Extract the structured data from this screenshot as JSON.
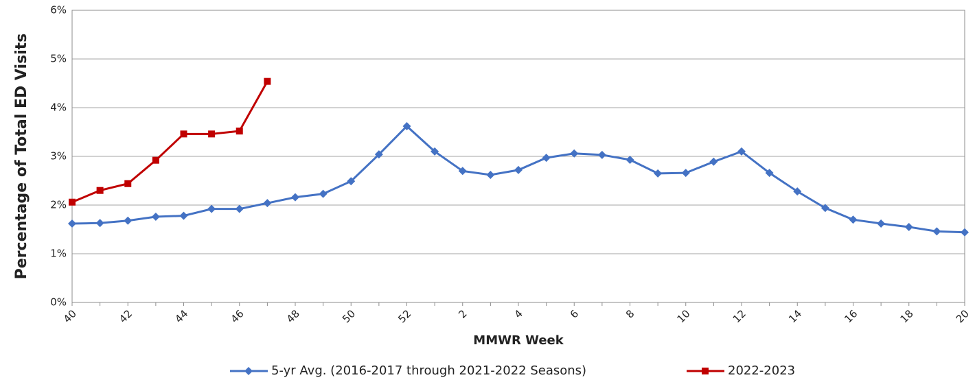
{
  "chart_data": {
    "type": "line",
    "y_label": "Percentage of Total ED Visits",
    "x_label": "MMWR Week",
    "categories": [
      "40",
      null,
      "42",
      null,
      "44",
      null,
      "46",
      null,
      "48",
      null,
      "50",
      null,
      "52",
      null,
      "2",
      null,
      "4",
      null,
      "6",
      null,
      "8",
      null,
      "10",
      null,
      "12",
      null,
      "14",
      null,
      "16",
      null,
      "18",
      null,
      "20"
    ],
    "series": [
      {
        "name": "5-yr Avg. (2016-2017 through 2021-2022 Seasons)",
        "color": "#4472c4",
        "marker": "diamond",
        "values": [
          1.62,
          1.63,
          1.68,
          1.76,
          1.78,
          1.92,
          1.92,
          2.04,
          2.16,
          2.23,
          2.49,
          3.04,
          3.62,
          3.1,
          2.7,
          2.62,
          2.72,
          2.97,
          3.06,
          3.03,
          2.93,
          2.65,
          2.66,
          2.89,
          3.1,
          2.66,
          2.28,
          1.94,
          1.7,
          1.62,
          1.55,
          1.46,
          1.44
        ]
      },
      {
        "name": "2022-2023",
        "color": "#c00000",
        "marker": "square",
        "values": [
          2.06,
          2.3,
          2.44,
          2.92,
          3.46,
          3.46,
          3.52,
          4.54,
          null,
          null,
          null,
          null,
          null,
          null,
          null,
          null,
          null,
          null,
          null,
          null,
          null,
          null,
          null,
          null,
          null,
          null,
          null,
          null,
          null,
          null,
          null,
          null,
          null
        ]
      }
    ],
    "ylim": [
      0,
      6
    ],
    "yticks": [
      {
        "value": 0,
        "label": "0%"
      },
      {
        "value": 1,
        "label": "1%"
      },
      {
        "value": 2,
        "label": "2%"
      },
      {
        "value": 3,
        "label": "3%"
      },
      {
        "value": 4,
        "label": "4%"
      },
      {
        "value": 5,
        "label": "5%"
      },
      {
        "value": 6,
        "label": "6%"
      }
    ],
    "grid": true
  }
}
